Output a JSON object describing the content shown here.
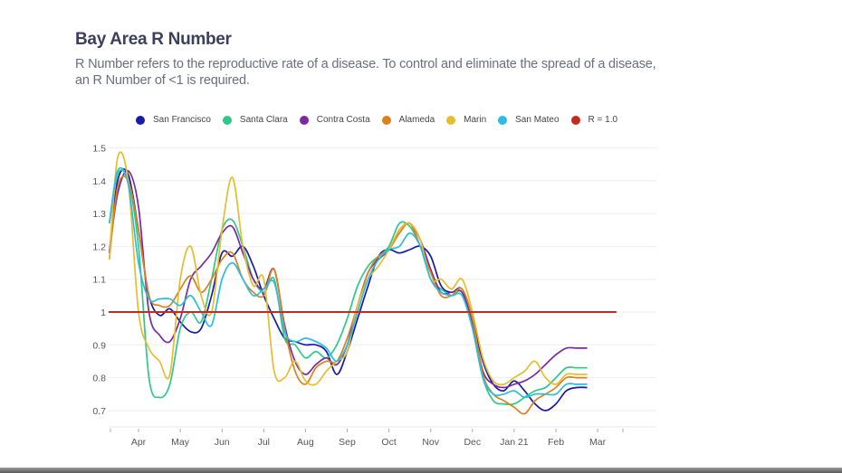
{
  "header": {
    "title": "Bay Area R Number",
    "subtitle": "R Number refers to the reproductive rate of a disease. To control and eliminate the spread of a disease, an R Number of <1 is required."
  },
  "chart_data": {
    "type": "line",
    "title": "Bay Area R Number",
    "xlabel": "",
    "ylabel": "",
    "ylim": [
      0.65,
      1.5
    ],
    "yticks": [
      0.7,
      0.8,
      0.9,
      1,
      1.1,
      1.2,
      1.3,
      1.4,
      1.5
    ],
    "ytick_labels": [
      "0.7",
      "0.8",
      "0.9",
      "1",
      "1.1",
      "1.2",
      "1.3",
      "1.4",
      "1.5"
    ],
    "xtick_labels": [
      "Apr",
      "May",
      "Jun",
      "Jul",
      "Aug",
      "Sep",
      "Oct",
      "Nov",
      "Dec",
      "Jan 21",
      "Feb",
      "Mar"
    ],
    "xlim_months": [
      -0.7,
      12.2
    ],
    "grid": true,
    "legend_position": "top",
    "x": [
      -0.7,
      -0.5,
      -0.25,
      0,
      0.25,
      0.5,
      0.75,
      1,
      1.25,
      1.5,
      1.75,
      2,
      2.25,
      2.5,
      2.75,
      3,
      3.25,
      3.5,
      3.75,
      4,
      4.25,
      4.5,
      4.75,
      5,
      5.25,
      5.5,
      5.75,
      6,
      6.25,
      6.5,
      6.75,
      7,
      7.25,
      7.5,
      7.75,
      8,
      8.25,
      8.5,
      8.75,
      9,
      9.25,
      9.5,
      9.75,
      10,
      10.25,
      10.5,
      10.75,
      11,
      11.25,
      11.5
    ],
    "series": [
      {
        "name": "San Francisco",
        "color": "#1a1aa6",
        "values": [
          1.18,
          1.4,
          1.42,
          1.25,
          1.05,
          0.99,
          1.01,
          0.97,
          0.94,
          0.95,
          1.05,
          1.18,
          1.17,
          1.2,
          1.14,
          1.05,
          0.98,
          0.92,
          0.91,
          0.9,
          0.9,
          0.88,
          0.81,
          0.88,
          0.98,
          1.08,
          1.17,
          1.19,
          1.18,
          1.19,
          1.2,
          1.17,
          1.08,
          1.06,
          1.07,
          0.98,
          0.85,
          0.78,
          0.76,
          0.79,
          0.76,
          0.72,
          0.7,
          0.72,
          0.76,
          0.77,
          0.77,
          0.77,
          0.77,
          0.77
        ]
      },
      {
        "name": "Santa Clara",
        "color": "#2ec98a",
        "values": [
          1.27,
          1.42,
          1.4,
          1.2,
          0.8,
          0.74,
          0.78,
          0.95,
          1.0,
          0.97,
          1.1,
          1.25,
          1.28,
          1.2,
          1.1,
          1.06,
          1.1,
          0.92,
          0.9,
          0.86,
          0.88,
          0.86,
          0.9,
          0.98,
          1.08,
          1.14,
          1.17,
          1.2,
          1.27,
          1.26,
          1.2,
          1.1,
          1.07,
          1.05,
          1.06,
          0.96,
          0.8,
          0.73,
          0.72,
          0.72,
          0.74,
          0.76,
          0.77,
          0.8,
          0.83,
          0.83,
          0.83,
          0.83,
          0.83,
          0.83
        ]
      },
      {
        "name": "Contra Costa",
        "color": "#7b2aa0",
        "values": [
          1.18,
          1.36,
          1.43,
          1.32,
          1.0,
          0.93,
          0.91,
          0.98,
          1.1,
          1.14,
          1.18,
          1.24,
          1.26,
          1.18,
          1.1,
          1.07,
          1.13,
          0.96,
          0.85,
          0.81,
          0.84,
          0.86,
          0.84,
          0.9,
          1.02,
          1.12,
          1.16,
          1.19,
          1.25,
          1.27,
          1.22,
          1.13,
          1.06,
          1.06,
          1.06,
          0.97,
          0.82,
          0.78,
          0.77,
          0.78,
          0.79,
          0.81,
          0.84,
          0.87,
          0.89,
          0.89,
          0.89,
          0.89,
          0.89,
          0.89
        ]
      },
      {
        "name": "Alameda",
        "color": "#d9821e",
        "values": [
          1.16,
          1.38,
          1.4,
          1.25,
          1.05,
          1.02,
          1.02,
          1.07,
          1.11,
          1.06,
          1.1,
          1.16,
          1.18,
          1.1,
          1.06,
          1.05,
          1.13,
          0.95,
          0.82,
          0.78,
          0.83,
          0.85,
          0.85,
          0.92,
          1.02,
          1.12,
          1.17,
          1.19,
          1.24,
          1.27,
          1.2,
          1.12,
          1.05,
          1.05,
          1.07,
          0.98,
          0.81,
          0.75,
          0.73,
          0.71,
          0.69,
          0.73,
          0.75,
          0.77,
          0.8,
          0.8,
          0.8,
          0.8,
          0.8,
          0.8
        ]
      },
      {
        "name": "Marin",
        "color": "#e6bd2e",
        "values": [
          1.16,
          1.47,
          1.4,
          1.0,
          0.89,
          0.85,
          0.81,
          1.1,
          1.2,
          1.05,
          1.0,
          1.25,
          1.41,
          1.2,
          1.08,
          1.1,
          0.82,
          0.8,
          0.85,
          0.79,
          0.78,
          0.82,
          0.85,
          0.88,
          1.02,
          1.1,
          1.14,
          1.19,
          1.25,
          1.27,
          1.22,
          1.1,
          1.1,
          1.07,
          1.1,
          1.0,
          0.86,
          0.79,
          0.78,
          0.8,
          0.82,
          0.85,
          0.8,
          0.78,
          0.81,
          0.81,
          0.81,
          0.81,
          0.81,
          0.81
        ]
      },
      {
        "name": "San Mateo",
        "color": "#2bbde0",
        "values": [
          1.27,
          1.43,
          1.39,
          1.15,
          1.04,
          1.04,
          1.04,
          1.02,
          1.05,
          1.0,
          0.96,
          1.1,
          1.15,
          1.1,
          1.05,
          1.07,
          1.09,
          0.94,
          0.91,
          0.92,
          0.91,
          0.89,
          0.85,
          0.9,
          1.0,
          1.1,
          1.16,
          1.19,
          1.2,
          1.24,
          1.2,
          1.1,
          1.06,
          1.05,
          1.05,
          0.95,
          0.8,
          0.75,
          0.75,
          0.76,
          0.74,
          0.75,
          0.75,
          0.75,
          0.78,
          0.78,
          0.78,
          0.78,
          0.78,
          0.78
        ]
      },
      {
        "name": "R = 1.0",
        "color": "#c42a1f",
        "values": [
          1,
          1,
          1,
          1,
          1,
          1,
          1,
          1,
          1,
          1,
          1,
          1,
          1,
          1,
          1,
          1,
          1,
          1,
          1,
          1,
          1,
          1,
          1,
          1,
          1,
          1,
          1,
          1,
          1,
          1,
          1,
          1,
          1,
          1,
          1,
          1,
          1,
          1,
          1,
          1,
          1,
          1,
          1,
          1,
          1,
          1,
          1,
          1,
          1,
          1
        ]
      }
    ]
  }
}
